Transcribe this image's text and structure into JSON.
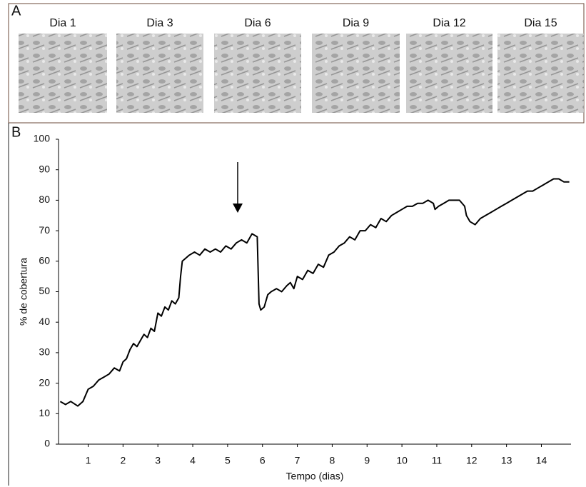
{
  "panel_labels": [
    "A",
    "B"
  ],
  "micrographs": [
    "Dia 1",
    "Dia 3",
    "Dia 6",
    "Dia 9",
    "Dia 12",
    "Dia 15"
  ],
  "chart_data": {
    "type": "line",
    "color": "#000000",
    "x_label": "Tempo (dias)",
    "y_label": "% de cobertura",
    "xlim": [
      0.15,
      14.85
    ],
    "ylim": [
      0,
      100
    ],
    "xticks": [
      1,
      2,
      3,
      4,
      5,
      6,
      7,
      8,
      9,
      10,
      11,
      12,
      13,
      14
    ],
    "yticks": [
      0,
      10,
      20,
      30,
      40,
      50,
      60,
      70,
      80,
      90,
      100
    ],
    "x": [
      0.2,
      0.35,
      0.5,
      0.7,
      0.85,
      1.0,
      1.15,
      1.3,
      1.45,
      1.6,
      1.75,
      1.9,
      2.0,
      2.1,
      2.2,
      2.3,
      2.4,
      2.5,
      2.6,
      2.7,
      2.8,
      2.9,
      3.0,
      3.1,
      3.2,
      3.3,
      3.4,
      3.5,
      3.6,
      3.65,
      3.7,
      3.8,
      3.9,
      4.05,
      4.2,
      4.35,
      4.5,
      4.65,
      4.8,
      4.95,
      5.1,
      5.25,
      5.4,
      5.55,
      5.7,
      5.85,
      5.9,
      5.95,
      6.05,
      6.15,
      6.25,
      6.4,
      6.55,
      6.7,
      6.8,
      6.9,
      7.0,
      7.15,
      7.3,
      7.45,
      7.6,
      7.75,
      7.9,
      8.05,
      8.2,
      8.35,
      8.5,
      8.65,
      8.8,
      8.95,
      9.1,
      9.25,
      9.4,
      9.55,
      9.7,
      9.85,
      10.0,
      10.15,
      10.3,
      10.45,
      10.6,
      10.75,
      10.9,
      10.95,
      11.05,
      11.2,
      11.35,
      11.5,
      11.65,
      11.8,
      11.85,
      11.95,
      12.1,
      12.25,
      12.4,
      12.55,
      12.7,
      12.85,
      13.0,
      13.15,
      13.3,
      13.45,
      13.6,
      13.75,
      13.9,
      14.05,
      14.2,
      14.35,
      14.5,
      14.65,
      14.8
    ],
    "values": [
      14,
      13,
      14,
      12.5,
      14,
      18,
      19,
      21,
      22,
      23,
      25,
      24,
      27,
      28,
      31,
      33,
      32,
      34,
      36,
      35,
      38,
      37,
      43,
      42,
      45,
      44,
      47,
      46,
      48,
      55,
      60,
      61,
      62,
      63,
      62,
      64,
      63,
      64,
      63,
      65,
      64,
      66,
      67,
      66,
      69,
      68,
      46,
      44,
      45,
      49,
      50,
      51,
      50,
      52,
      53,
      51,
      55,
      54,
      57,
      56,
      59,
      58,
      62,
      63,
      65,
      66,
      68,
      67,
      70,
      70,
      72,
      71,
      74,
      73,
      75,
      76,
      77,
      78,
      78,
      79,
      79,
      80,
      79,
      77,
      78,
      79,
      80,
      80,
      80,
      78,
      75,
      73,
      72,
      74,
      75,
      76,
      77,
      78,
      79,
      80,
      81,
      82,
      83,
      83,
      84,
      85,
      86,
      87,
      87,
      86,
      86
    ]
  }
}
